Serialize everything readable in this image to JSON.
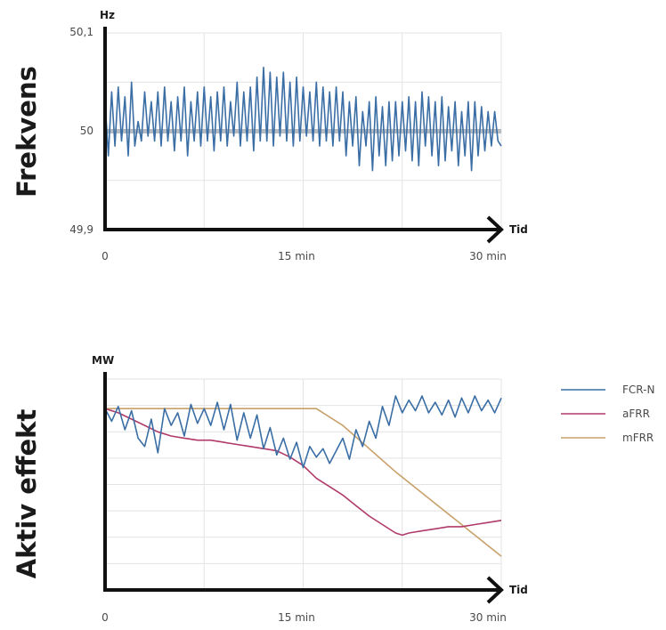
{
  "chart_data": [
    {
      "type": "line",
      "ylabel": "Frekvens",
      "yunit": "Hz",
      "xunit": "Tid",
      "x_ticks": [
        "0",
        "15 min",
        "30 min"
      ],
      "y_ticks": [
        "50,1",
        "50",
        "49,9"
      ],
      "xlim": [
        0,
        30
      ],
      "ylim": [
        49.9,
        50.1
      ],
      "reference_line": 50,
      "grid": true,
      "series": [
        {
          "color": "#3a6ea5",
          "x": [
            0,
            0.25,
            0.5,
            0.75,
            1,
            1.25,
            1.5,
            1.75,
            2,
            2.25,
            2.5,
            2.75,
            3,
            3.25,
            3.5,
            3.75,
            4,
            4.25,
            4.5,
            4.75,
            5,
            5.25,
            5.5,
            5.75,
            6,
            6.25,
            6.5,
            6.75,
            7,
            7.25,
            7.5,
            7.75,
            8,
            8.25,
            8.5,
            8.75,
            9,
            9.25,
            9.5,
            9.75,
            10,
            10.25,
            10.5,
            10.75,
            11,
            11.25,
            11.5,
            11.75,
            12,
            12.25,
            12.5,
            12.75,
            13,
            13.25,
            13.5,
            13.75,
            14,
            14.25,
            14.5,
            14.75,
            15,
            15.25,
            15.5,
            15.75,
            16,
            16.25,
            16.5,
            16.75,
            17,
            17.25,
            17.5,
            17.75,
            18,
            18.25,
            18.5,
            18.75,
            19,
            19.25,
            19.5,
            19.75,
            20,
            20.25,
            20.5,
            20.75,
            21,
            21.25,
            21.5,
            21.75,
            22,
            22.25,
            22.5,
            22.75,
            23,
            23.25,
            23.5,
            23.75,
            24,
            24.25,
            24.5,
            24.75,
            25,
            25.25,
            25.5,
            25.75,
            26,
            26.25,
            26.5,
            26.75,
            27,
            27.25,
            27.5,
            27.75,
            28,
            28.25,
            28.5,
            28.75,
            29,
            29.25,
            29.5,
            29.75,
            30
          ],
          "values": [
            50.03,
            49.975,
            50.04,
            49.985,
            50.045,
            49.99,
            50.035,
            49.975,
            50.05,
            49.985,
            50.01,
            49.99,
            50.04,
            49.995,
            50.03,
            49.99,
            50.04,
            49.985,
            50.045,
            49.99,
            50.03,
            49.98,
            50.035,
            49.99,
            50.045,
            49.975,
            50.03,
            49.99,
            50.04,
            49.985,
            50.045,
            49.99,
            50.035,
            49.98,
            50.04,
            49.99,
            50.045,
            49.985,
            50.03,
            49.995,
            50.05,
            49.985,
            50.04,
            49.99,
            50.045,
            49.98,
            50.055,
            49.99,
            50.065,
            49.99,
            50.06,
            49.985,
            50.055,
            49.995,
            50.06,
            49.99,
            50.05,
            49.985,
            50.055,
            49.99,
            50.045,
            49.995,
            50.04,
            49.99,
            50.05,
            49.985,
            50.045,
            49.99,
            50.04,
            49.985,
            50.045,
            49.99,
            50.04,
            49.975,
            50.03,
            49.985,
            50.035,
            49.965,
            50.02,
            49.985,
            50.03,
            49.96,
            50.035,
            49.975,
            50.025,
            49.965,
            50.03,
            49.97,
            50.03,
            49.975,
            50.03,
            49.98,
            50.035,
            49.97,
            50.03,
            49.965,
            50.04,
            49.985,
            50.035,
            49.975,
            50.03,
            49.965,
            50.035,
            49.97,
            50.025,
            49.98,
            50.03,
            49.965,
            50.02,
            49.975,
            50.03,
            49.96,
            50.03,
            49.975,
            50.025,
            49.98,
            50.02,
            49.985,
            50.02,
            49.99,
            49.985
          ]
        }
      ]
    },
    {
      "type": "line",
      "ylabel": "Aktiv effekt",
      "yunit": "MW",
      "xunit": "Tid",
      "x_ticks": [
        "0",
        "15 min",
        "30 min"
      ],
      "xlim": [
        0,
        30
      ],
      "ylim": [
        0,
        100
      ],
      "grid": true,
      "legend_position": "right",
      "series": [
        {
          "name": "FCR-N",
          "color": "#3a6ea5",
          "x": [
            0,
            0.5,
            1,
            1.5,
            2,
            2.5,
            3,
            3.5,
            4,
            4.5,
            5,
            5.5,
            6,
            6.5,
            7,
            7.5,
            8,
            8.5,
            9,
            9.5,
            10,
            10.5,
            11,
            11.5,
            12,
            12.5,
            13,
            13.5,
            14,
            14.5,
            15,
            15.5,
            16,
            16.5,
            17,
            17.5,
            18,
            18.5,
            19,
            19.5,
            20,
            20.5,
            21,
            21.5,
            22,
            22.5,
            23,
            23.5,
            24,
            24.5,
            25,
            25.5,
            26,
            26.5,
            27,
            27.5,
            28,
            28.5,
            29,
            29.5,
            30
          ],
          "values": [
            86,
            80,
            87,
            76,
            85,
            72,
            68,
            81,
            65,
            86,
            78,
            84,
            73,
            88,
            79,
            86,
            78,
            89,
            76,
            88,
            71,
            84,
            72,
            83,
            67,
            77,
            64,
            72,
            62,
            70,
            58,
            68,
            63,
            67,
            60,
            66,
            72,
            62,
            76,
            68,
            80,
            72,
            87,
            78,
            92,
            84,
            90,
            85,
            92,
            84,
            89,
            83,
            90,
            82,
            91,
            84,
            92,
            85,
            90,
            84,
            91
          ]
        },
        {
          "name": "aFRR",
          "color": "#b03a6a",
          "x": [
            0,
            1,
            2,
            3,
            4,
            5,
            6,
            7,
            8,
            9,
            10,
            11,
            12,
            13,
            14,
            15,
            16,
            17,
            18,
            19,
            20,
            21,
            22,
            22.5,
            23,
            24,
            25,
            26,
            27,
            28,
            29,
            30
          ],
          "values": [
            86,
            84,
            81,
            78,
            75,
            73,
            72,
            71,
            71,
            70,
            69,
            68,
            67,
            66,
            63,
            59,
            53,
            49,
            45,
            40,
            35,
            31,
            27,
            26,
            27,
            28,
            29,
            30,
            30,
            31,
            32,
            33
          ]
        },
        {
          "name": "mFRR",
          "color": "#c8a06a",
          "x": [
            0,
            16,
            18,
            20,
            22,
            24,
            26,
            28,
            30
          ],
          "values": [
            86,
            86,
            78,
            67,
            56,
            46,
            36,
            26,
            16
          ]
        }
      ]
    }
  ]
}
